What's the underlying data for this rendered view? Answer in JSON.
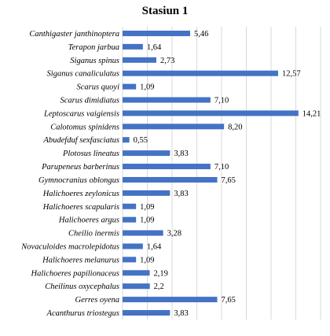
{
  "chart_data": {
    "type": "bar",
    "orientation": "horizontal",
    "title": "Stasiun 1",
    "xlabel": "",
    "ylabel": "",
    "xlim": [
      0,
      16
    ],
    "grid": true,
    "legend": "none",
    "bar_color": "#4472c4",
    "categories": [
      "Canthigaster janthinoptera",
      "Terapon jarbua",
      "Siganus spinus",
      "Siganus canaliculatus",
      "Scarus quoyi",
      "Scarus dimidiatus",
      "Leptoscarus vaigiensis",
      "Calotomus spinidens",
      "Abudefduf sexfasciatus",
      "Plotosus lineatus",
      "Parupeneus barberinus",
      "Gymnocranius oblongus",
      "Halichoeres zeylonicus",
      "Halichoeres scapularis",
      "Halichoeres argus",
      "Cheilio inermis",
      "Novaculoides macrolepidotus",
      "Halichoeres melanurus",
      "Halichoeres papilionaceus",
      "Cheilinus oxycephalus",
      "Gerres oyena",
      "Acanthurus triostegus"
    ],
    "values": [
      5.46,
      1.64,
      2.73,
      12.57,
      1.09,
      7.1,
      14.21,
      8.2,
      0.55,
      3.83,
      7.1,
      7.65,
      3.83,
      1.09,
      1.09,
      3.28,
      1.64,
      1.09,
      2.19,
      2.2,
      7.65,
      3.83
    ],
    "value_labels": [
      "5,46",
      "1,64",
      "2,73",
      "12,57",
      "1,09",
      "7,10",
      "14,21",
      "8,20",
      "0,55",
      "3,83",
      "7,10",
      "7,65",
      "3,83",
      "1,09",
      "1,09",
      "3,28",
      "1,64",
      "1,09",
      "2,19",
      "2,2",
      "7,65",
      "3,83"
    ]
  }
}
